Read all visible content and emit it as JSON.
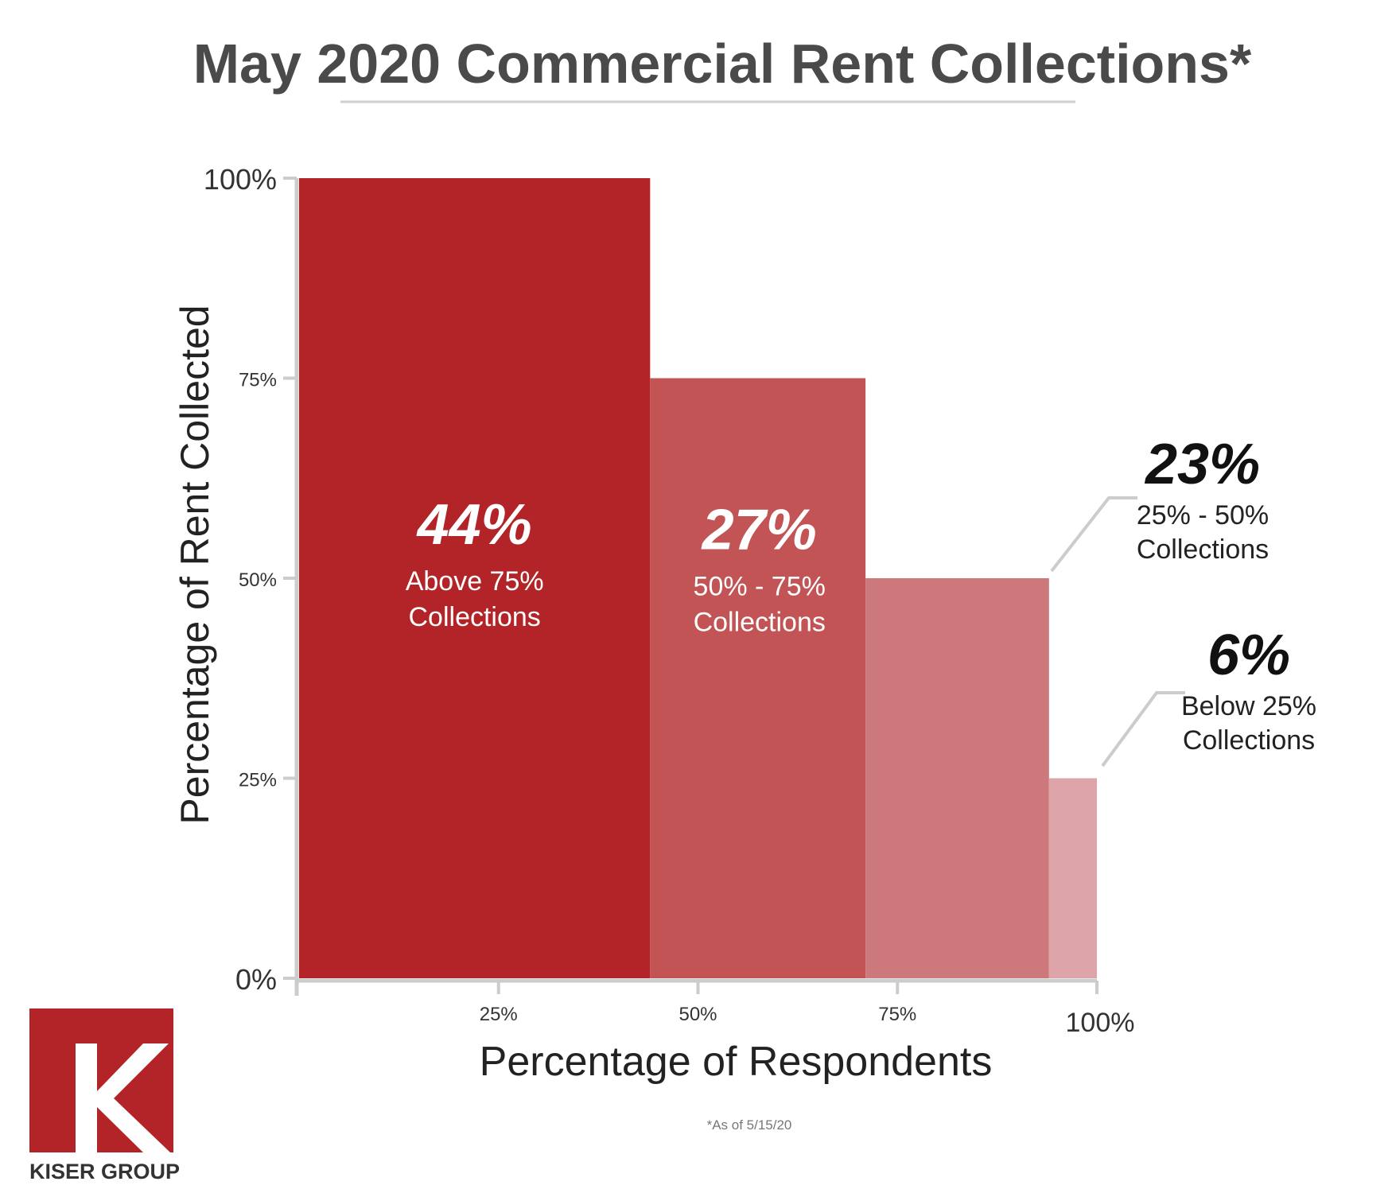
{
  "chart_data": {
    "type": "bar",
    "title": "May 2020 Commercial Rent Collections*",
    "xlabel": "Percentage of Respondents",
    "ylabel": "Percentage of Rent Collected",
    "x_ticks": [
      "25%",
      "50%",
      "75%",
      "100%"
    ],
    "y_ticks": [
      "0%",
      "25%",
      "50%",
      "75%",
      "100%"
    ],
    "xlim": [
      0,
      100
    ],
    "ylim": [
      0,
      100
    ],
    "grid": false,
    "legend": "none",
    "categories": [
      "Above 75% Collections",
      "50% - 75% Collections",
      "25% - 50% Collections",
      "Below 25% Collections"
    ],
    "bars": [
      {
        "share": 44,
        "share_label": "44%",
        "rent_collected": 100,
        "label_line1": "Above 75%",
        "label_line2": "Collections",
        "color": "#b22427",
        "label_position": "inside"
      },
      {
        "share": 27,
        "share_label": "27%",
        "rent_collected": 75,
        "label_line1": "50% - 75%",
        "label_line2": "Collections",
        "color": "#c25455",
        "label_position": "inside"
      },
      {
        "share": 23,
        "share_label": "23%",
        "rent_collected": 50,
        "label_line1": "25% - 50%",
        "label_line2": "Collections",
        "color": "#cd797b",
        "label_position": "outside"
      },
      {
        "share": 6,
        "share_label": "6%",
        "rent_collected": 25,
        "label_line1": "Below 25%",
        "label_line2": "Collections",
        "color": "#dda5a9",
        "label_position": "outside"
      }
    ],
    "footnote": "*As of 5/15/20"
  },
  "logo": {
    "letter": "K",
    "name": "KISER GROUP",
    "color": "#b22427"
  }
}
